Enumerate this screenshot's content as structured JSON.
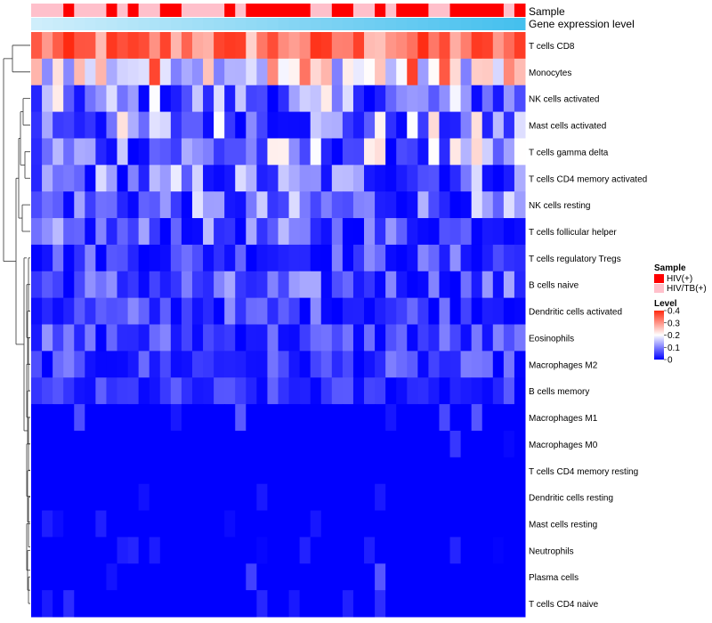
{
  "chart_data": {
    "type": "heatmap",
    "title": "",
    "annotation_tracks": [
      {
        "name": "Sample",
        "kind": "categorical"
      },
      {
        "name": "Gene expression level",
        "kind": "continuous"
      }
    ],
    "rows": [
      "T cells CD8",
      "Monocytes",
      "NK cells activated",
      "Mast cells activated",
      "T cells gamma delta",
      "T cells CD4 memory activated",
      "NK cells resting",
      "T cells follicular helper",
      "T cells regulatory  Tregs",
      "B cells naive",
      "Dendritic cells activated",
      "Eosinophils",
      "Macrophages M2",
      "B cells memory",
      "Macrophages M1",
      "Macrophages M0",
      "T cells CD4 memory resting",
      "Dendritic cells resting",
      "Mast cells resting",
      "Neutrophils",
      "Plasma cells",
      "T cells CD4 naive"
    ],
    "n_columns": 46,
    "sample_groups": [
      "HIV(+)",
      "HIV/TB(+)"
    ],
    "column_samples": [
      1,
      1,
      1,
      0,
      1,
      1,
      1,
      0,
      1,
      0,
      1,
      1,
      0,
      0,
      1,
      1,
      1,
      1,
      0,
      1,
      0,
      0,
      0,
      0,
      0,
      0,
      1,
      1,
      0,
      0,
      1,
      1,
      0,
      1,
      0,
      0,
      0,
      1,
      1,
      0,
      0,
      0,
      0,
      0,
      1,
      0
    ],
    "value_range": [
      0,
      0.4
    ],
    "row_profiles": [
      {
        "row": "T cells CD8",
        "min": 0.15,
        "max": 0.4,
        "mean": 0.33
      },
      {
        "row": "Monocytes",
        "min": 0.1,
        "max": 0.4,
        "mean": 0.2
      },
      {
        "row": "NK cells activated",
        "min": 0.0,
        "max": 0.22,
        "mean": 0.13
      },
      {
        "row": "Mast cells activated",
        "min": 0.0,
        "max": 0.24,
        "mean": 0.1
      },
      {
        "row": "T cells gamma delta",
        "min": 0.0,
        "max": 0.24,
        "mean": 0.1
      },
      {
        "row": "T cells CD4 memory activated",
        "min": 0.0,
        "max": 0.2,
        "mean": 0.09
      },
      {
        "row": "NK cells resting",
        "min": 0.0,
        "max": 0.18,
        "mean": 0.06
      },
      {
        "row": "T cells follicular helper",
        "min": 0.0,
        "max": 0.15,
        "mean": 0.08
      },
      {
        "row": "T cells regulatory  Tregs",
        "min": 0.0,
        "max": 0.12,
        "mean": 0.03
      },
      {
        "row": "B cells naive",
        "min": 0.0,
        "max": 0.14,
        "mean": 0.06
      },
      {
        "row": "Dendritic cells activated",
        "min": 0.0,
        "max": 0.12,
        "mean": 0.05
      },
      {
        "row": "Eosinophils",
        "min": 0.0,
        "max": 0.12,
        "mean": 0.03
      },
      {
        "row": "Macrophages M2",
        "min": 0.0,
        "max": 0.1,
        "mean": 0.03
      },
      {
        "row": "B cells memory",
        "min": 0.0,
        "max": 0.08,
        "mean": 0.02
      },
      {
        "row": "Macrophages M1",
        "min": 0.0,
        "max": 0.08,
        "mean": 0.015
      },
      {
        "row": "Macrophages M0",
        "min": 0.0,
        "max": 0.08,
        "mean": 0.015
      },
      {
        "row": "T cells CD4 memory resting",
        "min": 0.0,
        "max": 0.05,
        "mean": 0.005
      },
      {
        "row": "Dendritic cells resting",
        "min": 0.0,
        "max": 0.05,
        "mean": 0.005
      },
      {
        "row": "Mast cells resting",
        "min": 0.0,
        "max": 0.03,
        "mean": 0.002
      },
      {
        "row": "Neutrophils",
        "min": 0.0,
        "max": 0.03,
        "mean": 0.002
      },
      {
        "row": "Plasma cells",
        "min": 0.0,
        "max": 0.08,
        "mean": 0.01
      },
      {
        "row": "T cells CD4 naive",
        "min": 0.0,
        "max": 0.06,
        "mean": 0.008
      }
    ],
    "legend": {
      "sample_title": "Sample",
      "sample_entries": [
        {
          "label": "HIV(+)",
          "color": "#ff0000"
        },
        {
          "label": "HIV/TB(+)",
          "color": "#ffc0cb"
        }
      ],
      "level_title": "Level",
      "level_ticks": [
        "0.4",
        "0.3",
        "0.2",
        "0.1",
        "0"
      ],
      "level_tick_values": [
        0.4,
        0.3,
        0.2,
        0.1,
        0
      ]
    },
    "colors": {
      "low": "#0000ff",
      "mid": "#ffffff",
      "high": "#ff2a10",
      "track_start": "#cfeefb",
      "track_end": "#45c0ee",
      "dendrogram": "#333333"
    }
  }
}
